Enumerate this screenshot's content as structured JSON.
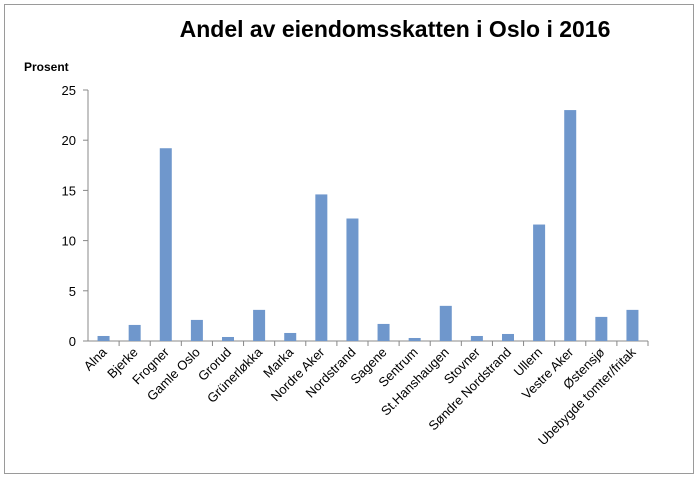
{
  "chart_data": {
    "type": "bar",
    "title": "Andel av eiendomsskatten i Oslo i 2016",
    "ylabel": "Prosent",
    "xlabel": "",
    "ylim": [
      0,
      25
    ],
    "yticks": [
      0,
      5,
      10,
      15,
      20,
      25
    ],
    "grid": false,
    "legend": "none",
    "bar_color": "#6f97cc",
    "categories": [
      "Alna",
      "Bjerke",
      "Frogner",
      "Gamle Oslo",
      "Grorud",
      "Grünerløkka",
      "Marka",
      "Nordre Aker",
      "Nordstrand",
      "Sagene",
      "Sentrum",
      "St.Hanshaugen",
      "Stovner",
      "Søndre Nordstrand",
      "Ullern",
      "Vestre Aker",
      "Østensjø",
      "Ubebygde tomter/fritak"
    ],
    "values": [
      0.5,
      1.6,
      19.2,
      2.1,
      0.4,
      3.1,
      0.8,
      14.6,
      12.2,
      1.7,
      0.3,
      3.5,
      0.5,
      0.7,
      11.6,
      23.0,
      2.4,
      3.1
    ]
  }
}
